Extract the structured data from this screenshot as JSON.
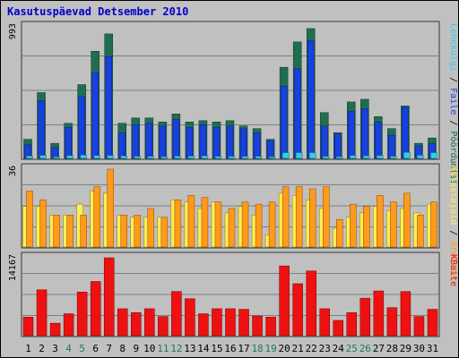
{
  "title": "Kasutuspäevad Detsember 2010",
  "colors": {
    "background": "#c0c0c0",
    "title": "#0000cc",
    "grid": "#7f7f7f",
    "hits": "#1f6f4f",
    "files": "#1a3fe0",
    "pages": "#33cce8",
    "visits": "#ff9a1a",
    "unique": "#ffee55",
    "bytes": "#ee1111",
    "weekend_label": "#1a7a5a",
    "weekday_label": "#000000"
  },
  "chart_data": [
    {
      "type": "bar",
      "name": "hits-files-pages",
      "categories": [
        "1",
        "2",
        "3",
        "4",
        "5",
        "6",
        "7",
        "8",
        "9",
        "10",
        "11",
        "12",
        "13",
        "14",
        "15",
        "16",
        "17",
        "18",
        "19",
        "20",
        "21",
        "22",
        "23",
        "24",
        "25",
        "26",
        "27",
        "28",
        "29",
        "30",
        "31"
      ],
      "ymax_label": "993",
      "ylim": [
        0,
        993
      ],
      "grid": true,
      "right_label": {
        "parts": [
          "Pöördumisi",
          "Faile",
          "Lehekülgi"
        ],
        "separator": " / "
      },
      "series": [
        {
          "name": "Pöördumisi",
          "color": "#1f6f4f",
          "values": [
            150,
            500,
            120,
            270,
            560,
            810,
            940,
            270,
            310,
            310,
            280,
            340,
            280,
            290,
            280,
            290,
            250,
            230,
            150,
            690,
            880,
            980,
            350,
            200,
            430,
            450,
            320,
            230,
            400,
            120,
            160
          ]
        },
        {
          "name": "Faile",
          "color": "#1a3fe0",
          "values": [
            110,
            440,
            90,
            240,
            470,
            650,
            770,
            200,
            260,
            270,
            250,
            300,
            240,
            260,
            240,
            250,
            230,
            200,
            140,
            550,
            680,
            890,
            250,
            190,
            360,
            380,
            280,
            180,
            390,
            100,
            120
          ]
        },
        {
          "name": "Lehekülgi",
          "color": "#33cce8",
          "values": [
            25,
            30,
            18,
            28,
            32,
            28,
            28,
            25,
            22,
            22,
            20,
            24,
            24,
            26,
            22,
            22,
            22,
            22,
            18,
            50,
            50,
            50,
            22,
            20,
            28,
            26,
            28,
            22,
            52,
            30,
            50
          ]
        }
      ]
    },
    {
      "type": "bar",
      "name": "visits-unique",
      "categories": [
        "1",
        "2",
        "3",
        "4",
        "5",
        "6",
        "7",
        "8",
        "9",
        "10",
        "11",
        "12",
        "13",
        "14",
        "15",
        "16",
        "17",
        "18",
        "19",
        "20",
        "21",
        "22",
        "23",
        "24",
        "25",
        "26",
        "27",
        "28",
        "29",
        "30",
        "31"
      ],
      "ymax_label": "36",
      "ylim": [
        0,
        36
      ],
      "grid": true,
      "right_label": {
        "parts": [
          "Aruteid",
          "Külastajaid"
        ],
        "separator": " / "
      },
      "series": [
        {
          "name": "Aruteid",
          "color": "#ff9a1a",
          "values": [
            26,
            22,
            15,
            15,
            15,
            28,
            36,
            15,
            15,
            18,
            14,
            22,
            24,
            23,
            21,
            18,
            21,
            20,
            21,
            28,
            28,
            27,
            28,
            13,
            20,
            19,
            24,
            21,
            25,
            15,
            21
          ]
        },
        {
          "name": "Külastajaid",
          "color": "#ffee55",
          "values": [
            19,
            19,
            15,
            15,
            20,
            26,
            25,
            15,
            14,
            14,
            14,
            22,
            21,
            18,
            21,
            16,
            19,
            15,
            6,
            25,
            24,
            22,
            18,
            9,
            14,
            16,
            19,
            17,
            18,
            16,
            20
          ]
        }
      ]
    },
    {
      "type": "bar",
      "name": "bytes",
      "categories": [
        "1",
        "2",
        "3",
        "4",
        "5",
        "6",
        "7",
        "8",
        "9",
        "10",
        "11",
        "12",
        "13",
        "14",
        "15",
        "16",
        "17",
        "18",
        "19",
        "20",
        "21",
        "22",
        "23",
        "24",
        "25",
        "26",
        "27",
        "28",
        "29",
        "30",
        "31"
      ],
      "ymax_label": "14167",
      "ylim": [
        0,
        14167
      ],
      "grid": true,
      "right_label": {
        "parts": [
          "KBaite"
        ],
        "separator": ""
      },
      "weekend_days": [
        "4",
        "5",
        "11",
        "12",
        "18",
        "19",
        "25",
        "26"
      ],
      "series": [
        {
          "name": "KBaite",
          "color": "#ee1111",
          "values": [
            3500,
            8400,
            2400,
            4100,
            8000,
            9900,
            14167,
            5000,
            4300,
            5000,
            3600,
            8100,
            6800,
            4100,
            5000,
            5000,
            4900,
            3700,
            3500,
            12700,
            9500,
            11800,
            5000,
            2900,
            4300,
            6900,
            8200,
            5200,
            8100,
            3600,
            4900
          ]
        }
      ]
    }
  ]
}
